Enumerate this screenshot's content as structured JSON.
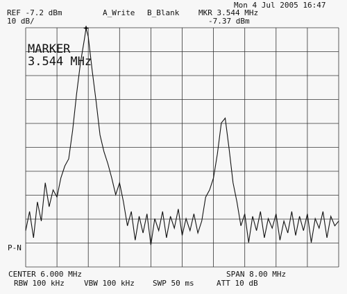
{
  "chart_data": {
    "type": "line",
    "header": {
      "date": "Mon  4 Jul 2005 16:47",
      "ref": "REF -7.2 dBm",
      "scale": "10 dB/",
      "trace_a": "A_Write",
      "trace_b": "B_Blank",
      "marker_freq": "MKR 3.544 MHz",
      "marker_level": "-7.37 dBm"
    },
    "marker_label": "MARKER",
    "marker_label_freq": "3.544 MHz",
    "pn_label": "P-N",
    "footer": {
      "center": "CENTER 6.000 MHz",
      "span": "SPAN 8.00 MHz",
      "rbw": "RBW 100 kHz",
      "vbw": "VBW 100 kHz",
      "swp": "SWP 50 ms",
      "att": "ATT 10 dB"
    },
    "marker": {
      "x": 3.544,
      "y": -7.37
    },
    "xlim": [
      2,
      10
    ],
    "ylim": [
      -107.2,
      -7.2
    ],
    "color": "#111111",
    "series": [
      {
        "x": [
          2.0,
          2.1,
          2.2,
          2.3,
          2.4,
          2.5,
          2.6,
          2.7,
          2.8,
          2.9,
          3.0,
          3.1,
          3.2,
          3.3,
          3.4,
          3.5,
          3.544,
          3.6,
          3.7,
          3.8,
          3.9,
          4.0,
          4.1,
          4.2,
          4.3,
          4.4,
          4.5,
          4.6,
          4.7,
          4.8,
          4.9,
          5.0,
          5.1,
          5.2,
          5.3,
          5.4,
          5.5,
          5.6,
          5.7,
          5.8,
          5.9,
          6.0,
          6.1,
          6.2,
          6.3,
          6.4,
          6.5,
          6.6,
          6.7,
          6.8,
          6.9,
          7.0,
          7.1,
          7.2,
          7.3,
          7.4,
          7.5,
          7.6,
          7.7,
          7.8,
          7.9,
          8.0,
          8.1,
          8.2,
          8.3,
          8.4,
          8.5,
          8.6,
          8.7,
          8.8,
          8.9,
          9.0,
          9.1,
          9.2,
          9.3,
          9.4,
          9.5,
          9.6,
          9.7,
          9.8,
          9.9,
          10.0
        ],
        "values": [
          -92,
          -84,
          -95,
          -80,
          -88,
          -72,
          -82,
          -75,
          -78,
          -70,
          -65,
          -62,
          -50,
          -35,
          -22,
          -12,
          -7.37,
          -11,
          -25,
          -38,
          -52,
          -59,
          -64,
          -70,
          -77,
          -72,
          -80,
          -90,
          -84,
          -96,
          -86,
          -93,
          -85,
          -98,
          -87,
          -92,
          -84,
          -95,
          -86,
          -91,
          -83,
          -94,
          -87,
          -92,
          -85,
          -93,
          -88,
          -78,
          -75,
          -70,
          -60,
          -47,
          -45,
          -58,
          -72,
          -80,
          -90,
          -85,
          -97,
          -86,
          -92,
          -84,
          -95,
          -87,
          -91,
          -85,
          -96,
          -88,
          -93,
          -84,
          -94,
          -86,
          -92,
          -85,
          -97,
          -87,
          -91,
          -84,
          -95,
          -86,
          -90,
          -88
        ]
      }
    ]
  }
}
